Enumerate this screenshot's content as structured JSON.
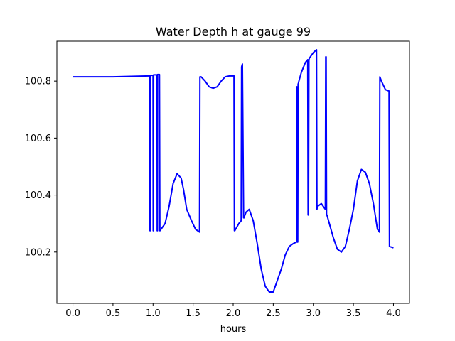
{
  "chart_data": {
    "type": "line",
    "title": "Water Depth h at gauge 99",
    "xlabel": "hours",
    "ylabel": "",
    "xlim": [
      -0.2,
      4.2
    ],
    "ylim": [
      100.02,
      100.94
    ],
    "xticks": [
      0.0,
      0.5,
      1.0,
      1.5,
      2.0,
      2.5,
      3.0,
      3.5,
      4.0
    ],
    "xtick_labels": [
      "0.0",
      "0.5",
      "1.0",
      "1.5",
      "2.0",
      "2.5",
      "3.0",
      "3.5",
      "4.0"
    ],
    "yticks": [
      100.2,
      100.4,
      100.6,
      100.8
    ],
    "ytick_labels": [
      "100.2",
      "100.4",
      "100.6",
      "100.8"
    ],
    "grid": false,
    "series": [
      {
        "color": "#0000ff",
        "x": [
          0.0,
          0.5,
          0.95,
          0.96,
          0.962,
          0.965,
          0.967,
          0.97,
          1.0,
          1.002,
          1.005,
          1.007,
          1.01,
          1.05,
          1.052,
          1.055,
          1.057,
          1.06,
          1.08,
          1.085,
          1.087,
          1.09,
          1.1,
          1.15,
          1.2,
          1.25,
          1.3,
          1.35,
          1.38,
          1.42,
          1.48,
          1.53,
          1.58,
          1.585,
          1.6,
          1.65,
          1.7,
          1.75,
          1.8,
          1.85,
          1.9,
          1.95,
          2.01,
          2.015,
          2.02,
          2.07,
          2.1,
          2.105,
          2.11,
          2.115,
          2.13,
          2.135,
          2.14,
          2.16,
          2.2,
          2.25,
          2.3,
          2.35,
          2.4,
          2.45,
          2.5,
          2.55,
          2.6,
          2.65,
          2.7,
          2.75,
          2.79,
          2.792,
          2.795,
          2.8,
          2.805,
          2.81,
          2.812,
          2.82,
          2.85,
          2.9,
          2.93,
          2.935,
          2.94,
          2.945,
          2.95,
          3.0,
          3.04,
          3.045,
          3.05,
          3.1,
          3.15,
          3.155,
          3.16,
          3.165,
          3.17,
          3.2,
          3.25,
          3.3,
          3.35,
          3.4,
          3.45,
          3.5,
          3.55,
          3.6,
          3.65,
          3.7,
          3.75,
          3.8,
          3.825,
          3.83,
          3.85,
          3.9,
          3.945,
          3.95,
          4.0
        ],
        "y": [
          100.815,
          100.815,
          100.818,
          100.818,
          100.275,
          100.275,
          100.82,
          100.82,
          100.82,
          100.275,
          100.275,
          100.822,
          100.822,
          100.822,
          100.275,
          100.275,
          100.823,
          100.823,
          100.823,
          100.275,
          100.275,
          100.278,
          100.28,
          100.3,
          100.36,
          100.44,
          100.475,
          100.46,
          100.42,
          100.35,
          100.31,
          100.28,
          100.27,
          100.815,
          100.815,
          100.8,
          100.78,
          100.775,
          100.78,
          100.8,
          100.815,
          100.818,
          100.818,
          100.275,
          100.275,
          100.3,
          100.31,
          100.85,
          100.855,
          100.86,
          100.32,
          100.32,
          100.325,
          100.34,
          100.35,
          100.31,
          100.23,
          100.14,
          100.08,
          100.06,
          100.06,
          100.1,
          100.14,
          100.19,
          100.22,
          100.23,
          100.235,
          100.78,
          100.78,
          100.235,
          100.235,
          100.79,
          100.79,
          100.8,
          100.83,
          100.865,
          100.875,
          100.33,
          100.33,
          100.875,
          100.88,
          100.9,
          100.91,
          100.35,
          100.36,
          100.37,
          100.35,
          100.885,
          100.885,
          100.33,
          100.33,
          100.3,
          100.25,
          100.21,
          100.2,
          100.22,
          100.28,
          100.35,
          100.45,
          100.49,
          100.48,
          100.44,
          100.37,
          100.28,
          100.27,
          100.815,
          100.8,
          100.77,
          100.765,
          100.22,
          100.215
        ]
      }
    ]
  }
}
